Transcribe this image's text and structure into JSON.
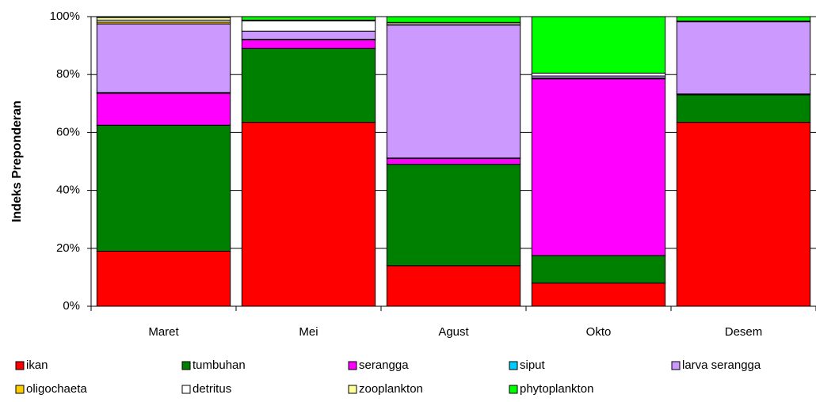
{
  "chart_data": {
    "type": "stacked_bar_100",
    "y_label": "Indeks Preponderan",
    "categories": [
      "Maret",
      "Mei",
      "Agust",
      "Okto",
      "Desem"
    ],
    "series": [
      {
        "name": "ikan",
        "color": "#ff0000",
        "values": [
          19,
          63.5,
          14,
          8,
          63.5
        ]
      },
      {
        "name": "tumbuhan",
        "color": "#008000",
        "values": [
          43.5,
          25.5,
          35,
          9.5,
          9.5
        ]
      },
      {
        "name": "serangga",
        "color": "#ff00ff",
        "values": [
          11,
          3,
          2,
          61,
          0.3
        ]
      },
      {
        "name": "siput",
        "color": "#00ccff",
        "values": [
          0.3,
          0.2,
          0.2,
          0.3,
          0
        ]
      },
      {
        "name": "larva serangga",
        "color": "#cc99ff",
        "values": [
          23.7,
          2.8,
          45.8,
          0.7,
          24.9
        ]
      },
      {
        "name": "oligochaeta",
        "color": "#ffcc00",
        "values": [
          0.6,
          0,
          0,
          0,
          0
        ]
      },
      {
        "name": "detritus",
        "color": "#ffffff",
        "values": [
          0.7,
          3.5,
          0.5,
          1,
          0.3
        ]
      },
      {
        "name": "zooplankton",
        "color": "#ffff99",
        "values": [
          0.9,
          0.3,
          0.5,
          0,
          0
        ]
      },
      {
        "name": "phytoplankton",
        "color": "#00ff00",
        "values": [
          0.3,
          1.2,
          2,
          19.5,
          1.5
        ]
      }
    ],
    "ylim": [
      0,
      100
    ],
    "yticks": [
      {
        "value": 0,
        "label": "0%"
      },
      {
        "value": 20,
        "label": "20%"
      },
      {
        "value": 40,
        "label": "40%"
      },
      {
        "value": 60,
        "label": "60%"
      },
      {
        "value": 80,
        "label": "80%"
      },
      {
        "value": 100,
        "label": "100%"
      }
    ],
    "grid": true
  }
}
